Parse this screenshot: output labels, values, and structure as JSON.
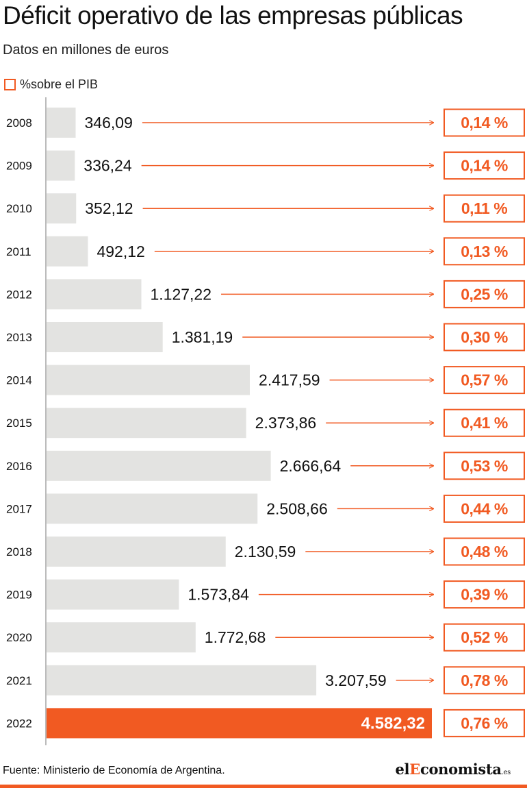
{
  "title": "Déficit operativo de las empresas públicas",
  "subtitle": "Datos en millones de euros",
  "legend": {
    "label": "%sobre el PIB"
  },
  "colors": {
    "accent": "#f15a22",
    "bar": "#e3e3e1",
    "axis": "#bbbbbb"
  },
  "chart_data": {
    "type": "bar",
    "orientation": "horizontal",
    "categories": [
      "2008",
      "2009",
      "2010",
      "2011",
      "2012",
      "2013",
      "2014",
      "2015",
      "2016",
      "2017",
      "2018",
      "2019",
      "2020",
      "2021",
      "2022"
    ],
    "values": [
      346.09,
      336.24,
      352.12,
      492.12,
      1127.22,
      1381.19,
      2417.59,
      2373.86,
      2666.64,
      2508.66,
      2130.59,
      1573.84,
      1772.68,
      3207.59,
      4582.32
    ],
    "value_labels": [
      "346,09",
      "336,24",
      "352,12",
      "492,12",
      "1.127,22",
      "1.381,19",
      "2.417,59",
      "2.373,86",
      "2.666,64",
      "2.508,66",
      "2.130,59",
      "1.573,84",
      "1.772,68",
      "3.207,59",
      "4.582,32"
    ],
    "pct_pib": [
      "0,14 %",
      "0,14 %",
      "0,11 %",
      "0,13 %",
      "0,25 %",
      "0,30 %",
      "0,57 %",
      "0,41 %",
      "0,53 %",
      "0,44 %",
      "0,48 %",
      "0,39 %",
      "0,52 %",
      "0,78 %",
      "0,76 %"
    ],
    "highlight_index": 14,
    "xlim": [
      0,
      4582.32
    ],
    "grid": false
  },
  "footer": {
    "source": "Fuente: Ministerio de Economía de Argentina.",
    "brand_prefix": "el",
    "brand_highlight": "E",
    "brand_suffix": "conomista",
    "brand_tld": ".es"
  }
}
